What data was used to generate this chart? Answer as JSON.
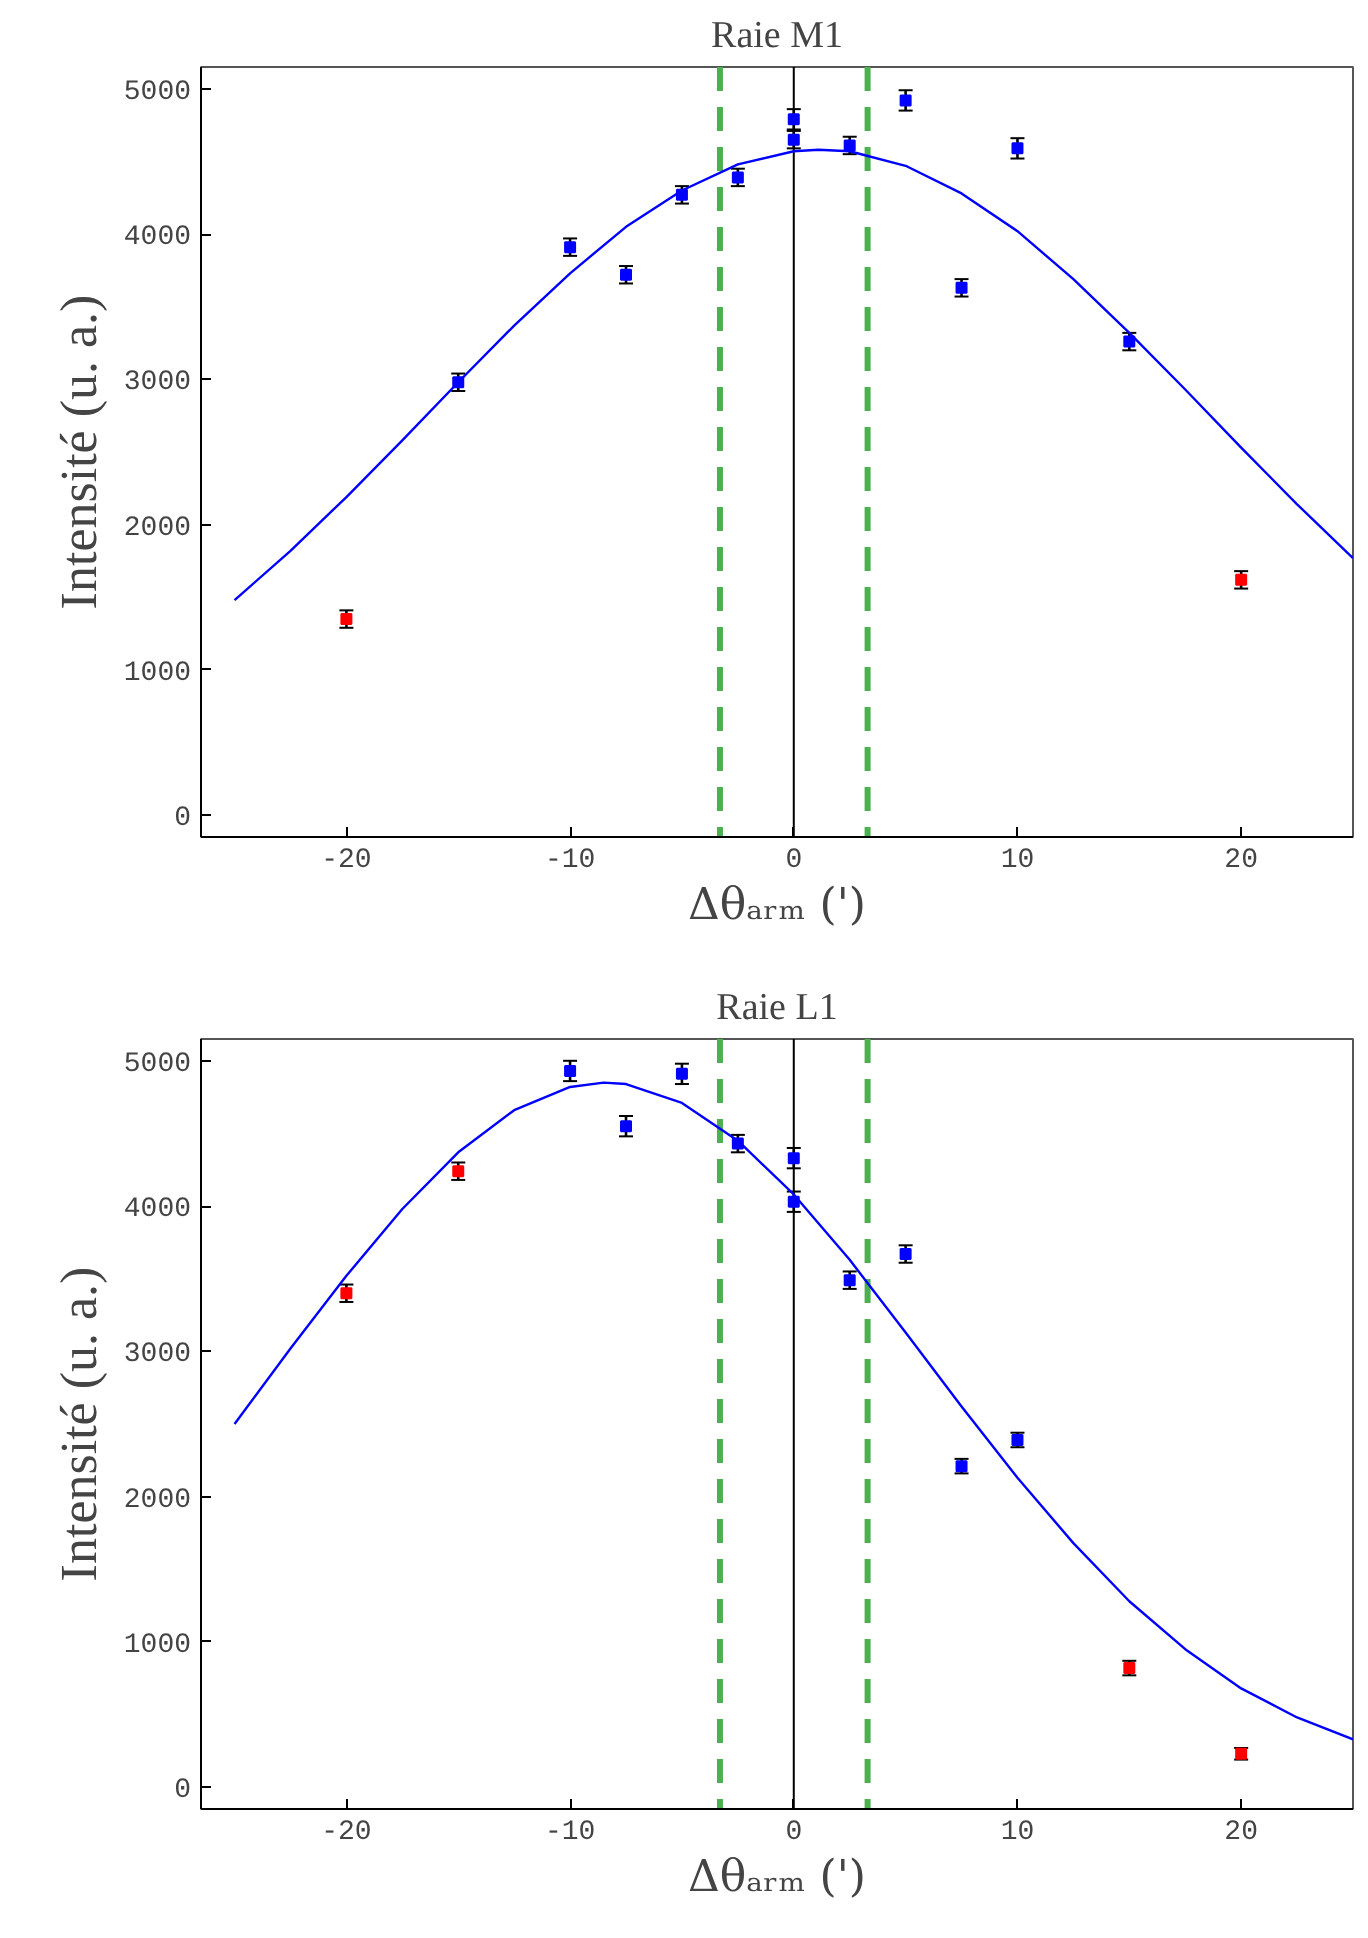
{
  "chart_data": [
    {
      "type": "scatter",
      "title": "Raie M1",
      "xlabel": "Δθₐᵣₘ (')",
      "ylabel": "Intensité (u. a.)",
      "xlim": [
        -26.5,
        25
      ],
      "ylim": [
        -150,
        5150
      ],
      "xticks": [
        -20,
        -10,
        0,
        10,
        20
      ],
      "yticks": [
        0,
        1000,
        2000,
        3000,
        4000,
        5000
      ],
      "grid": false,
      "marker": "square",
      "series": [
        {
          "type": "line",
          "color": "#0000ff",
          "line_style": "solid",
          "marker": "none",
          "x": [
            -25,
            -22.5,
            -20,
            -17.5,
            -15,
            -12.5,
            -10,
            -7.5,
            -5,
            -2.5,
            0,
            1.1,
            2.5,
            5,
            7.5,
            10,
            12.5,
            15,
            17.5,
            20,
            22.5,
            25
          ],
          "values": [
            1480,
            1820,
            2190,
            2580,
            2980,
            3370,
            3730,
            4050,
            4300,
            4480,
            4570,
            4580,
            4570,
            4470,
            4280,
            4020,
            3690,
            3320,
            2930,
            2530,
            2140,
            1770
          ]
        },
        {
          "color": "#0000ff",
          "x": [
            -15,
            -10,
            -7.5,
            -5,
            -2.5,
            0,
            0,
            2.5,
            5,
            7.5,
            10,
            15
          ],
          "values": [
            2980,
            3910,
            3720,
            4270,
            4390,
            4790,
            4650,
            4610,
            4920,
            3630,
            4590,
            3260
          ],
          "errors": [
            60,
            60,
            60,
            60,
            60,
            70,
            60,
            60,
            70,
            60,
            70,
            60
          ]
        },
        {
          "color": "#ff0000",
          "x": [
            -20,
            20
          ],
          "values": [
            1350,
            1620
          ],
          "errors": [
            60,
            60
          ]
        }
      ],
      "ref_lines": [
        {
          "axis": "x",
          "value": 0,
          "color": "#000000",
          "line_style": "solid"
        },
        {
          "axis": "x",
          "value": -3.3,
          "color": "#4caf50",
          "line_style": "dashed"
        },
        {
          "axis": "x",
          "value": 3.3,
          "color": "#4caf50",
          "line_style": "dashed"
        }
      ]
    },
    {
      "type": "scatter",
      "title": "Raie L1",
      "xlabel": "Δθₐᵣₘ (')",
      "ylabel": "Intensité (u. a.)",
      "xlim": [
        -26.5,
        25
      ],
      "ylim": [
        -150,
        5150
      ],
      "xticks": [
        -20,
        -10,
        0,
        10,
        20
      ],
      "yticks": [
        0,
        1000,
        2000,
        3000,
        4000,
        5000
      ],
      "grid": false,
      "marker": "square",
      "series": [
        {
          "type": "line",
          "color": "#0000ff",
          "line_style": "solid",
          "marker": "none",
          "x": [
            -25,
            -22.5,
            -20,
            -17.5,
            -15,
            -12.5,
            -10,
            -8.5,
            -7.5,
            -5,
            -2.5,
            0,
            2.5,
            5,
            7.5,
            10,
            12.5,
            15,
            17.5,
            20,
            22.5,
            25
          ],
          "values": [
            2500,
            3020,
            3520,
            3980,
            4370,
            4660,
            4820,
            4850,
            4840,
            4710,
            4450,
            4080,
            3630,
            3130,
            2620,
            2130,
            1680,
            1280,
            950,
            680,
            480,
            330
          ]
        },
        {
          "color": "#0000ff",
          "x": [
            -10,
            -7.5,
            -5,
            -2.5,
            0,
            0,
            2.5,
            5,
            7.5,
            10
          ],
          "values": [
            4930,
            4550,
            4910,
            4430,
            4330,
            4030,
            3490,
            3670,
            2210,
            2390
          ],
          "errors": [
            70,
            70,
            70,
            60,
            70,
            70,
            60,
            60,
            50,
            50
          ]
        },
        {
          "color": "#ff0000",
          "x": [
            -20,
            -15,
            20,
            15
          ],
          "values": [
            3400,
            4240,
            230,
            820
          ],
          "errors": [
            60,
            60,
            40,
            50
          ]
        }
      ],
      "ref_lines": [
        {
          "axis": "x",
          "value": 0,
          "color": "#000000",
          "line_style": "solid"
        },
        {
          "axis": "x",
          "value": -3.3,
          "color": "#4caf50",
          "line_style": "dashed"
        },
        {
          "axis": "x",
          "value": 3.3,
          "color": "#4caf50",
          "line_style": "dashed"
        }
      ]
    }
  ]
}
